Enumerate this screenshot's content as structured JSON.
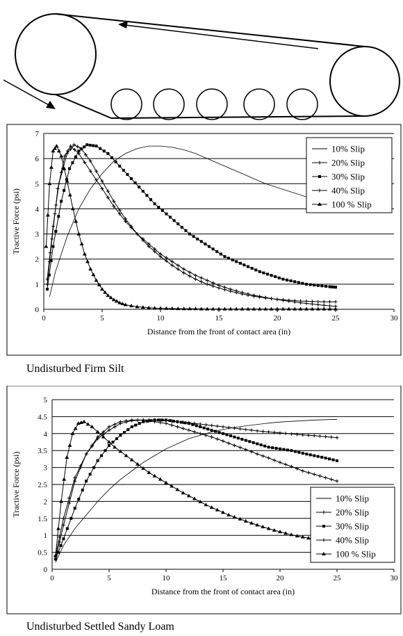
{
  "charts": [
    {
      "id": "chart1",
      "caption": "Undisturbed Firm Silt",
      "chart_data": {
        "type": "line",
        "xlabel": "Distance from the front of contact area (in)",
        "ylabel": "Tractive Force (psi)",
        "xlim": [
          0,
          30
        ],
        "ylim": [
          0,
          7
        ],
        "xticks": [
          0,
          5,
          10,
          15,
          20,
          25,
          30
        ],
        "yticks": [
          0,
          1,
          2,
          3,
          4,
          5,
          6,
          7
        ],
        "grid": "horizontal",
        "legend_position": "top-right",
        "series": [
          {
            "name": "10% Slip",
            "marker": "none",
            "x": [
              0.5,
              1,
              2,
              3,
              4,
              5,
              6,
              7,
              8,
              9,
              10,
              11,
              12,
              13,
              14,
              15,
              16,
              17,
              18,
              19,
              20,
              21,
              22,
              23,
              24,
              25
            ],
            "y": [
              0.5,
              1.5,
              2.9,
              4.0,
              4.8,
              5.4,
              5.9,
              6.2,
              6.4,
              6.5,
              6.5,
              6.45,
              6.35,
              6.2,
              6.0,
              5.8,
              5.6,
              5.4,
              5.2,
              5.0,
              4.85,
              4.7,
              4.55,
              4.4,
              4.25,
              4.1
            ]
          },
          {
            "name": "20% Slip",
            "marker": "plus",
            "x": [
              0.3,
              0.7,
              1.2,
              1.8,
              2.3,
              3,
              4,
              5,
              6,
              7,
              8,
              9,
              10,
              11,
              12,
              13,
              14,
              15,
              16,
              17,
              18,
              19,
              20,
              21,
              22,
              23,
              24,
              25
            ],
            "y": [
              1.0,
              2.8,
              4.8,
              6.1,
              6.5,
              6.2,
              5.5,
              4.8,
              4.1,
              3.5,
              3.0,
              2.6,
              2.2,
              1.9,
              1.6,
              1.35,
              1.15,
              0.95,
              0.8,
              0.67,
              0.56,
              0.47,
              0.39,
              0.32,
              0.26,
              0.21,
              0.16,
              0.12
            ]
          },
          {
            "name": "30% Slip",
            "marker": "square",
            "x": [
              0.3,
              0.8,
              1.5,
              2.2,
              3,
              3.7,
              4.5,
              5.5,
              6.5,
              7.5,
              8.5,
              9.5,
              10.5,
              11.5,
              12.5,
              13.5,
              14.5,
              15.5,
              16.5,
              17.5,
              18.5,
              19.5,
              20.5,
              21.5,
              22.5,
              23.5,
              24.5,
              25
            ],
            "y": [
              0.8,
              2.5,
              4.3,
              5.6,
              6.3,
              6.55,
              6.5,
              6.2,
              5.7,
              5.2,
              4.7,
              4.2,
              3.8,
              3.4,
              3.0,
              2.7,
              2.4,
              2.1,
              1.9,
              1.7,
              1.5,
              1.35,
              1.2,
              1.1,
              1.0,
              0.95,
              0.9,
              0.88
            ]
          },
          {
            "name": "40% Slip",
            "marker": "plus",
            "x": [
              0.3,
              0.8,
              1.3,
              2,
              2.6,
              3.2,
              4,
              5,
              6,
              7,
              8,
              9,
              10,
              11,
              12,
              13,
              14,
              15,
              16,
              17,
              18,
              19,
              20,
              21,
              22,
              23,
              24,
              25
            ],
            "y": [
              1.2,
              3.3,
              5.0,
              6.2,
              6.55,
              6.4,
              5.9,
              5.1,
              4.3,
              3.6,
              3.0,
              2.5,
              2.1,
              1.75,
              1.45,
              1.2,
              1.0,
              0.85,
              0.72,
              0.61,
              0.52,
              0.45,
              0.4,
              0.36,
              0.33,
              0.31,
              0.3,
              0.3
            ]
          },
          {
            "name": "100 % Slip",
            "marker": "triangle",
            "x": [
              0.2,
              0.5,
              0.8,
              1.1,
              1.5,
              2,
              2.5,
              3,
              3.5,
              4,
              4.5,
              5,
              5.5,
              6,
              6.5,
              7,
              8,
              9,
              10,
              11,
              12,
              13,
              14,
              15,
              16,
              17,
              18,
              19,
              20,
              21,
              22,
              23,
              24,
              25
            ],
            "y": [
              2.5,
              5.0,
              6.3,
              6.5,
              6.1,
              5.1,
              4.0,
              3.0,
              2.2,
              1.6,
              1.15,
              0.8,
              0.55,
              0.38,
              0.26,
              0.18,
              0.1,
              0.06,
              0.04,
              0.03,
              0.02,
              0.02,
              0.01,
              0.01,
              0.01,
              0.01,
              0.01,
              0.01,
              0.01,
              0.01,
              0.01,
              0.01,
              0.01,
              0.01
            ]
          }
        ]
      }
    },
    {
      "id": "chart2",
      "caption": "Undisturbed Settled Sandy Loam",
      "chart_data": {
        "type": "line",
        "xlabel": "Distance from the front of contact area (in)",
        "ylabel": "Tractive Force (psi)",
        "xlim": [
          0,
          30
        ],
        "ylim": [
          0,
          5
        ],
        "xticks": [
          0,
          5,
          10,
          15,
          20,
          25,
          30
        ],
        "yticks": [
          0,
          0.5,
          1,
          1.5,
          2,
          2.5,
          3,
          3.5,
          4,
          4.5,
          5
        ],
        "grid": "horizontal",
        "legend_position": "bottom-right",
        "series": [
          {
            "name": "10% Slip",
            "marker": "none",
            "x": [
              0.3,
              1,
              2,
              3,
              4,
              5,
              6,
              7,
              8,
              9,
              10,
              11,
              12,
              13,
              14,
              15,
              16,
              17,
              18,
              19,
              20,
              21,
              22,
              23,
              24,
              25
            ],
            "y": [
              0.2,
              0.7,
              1.2,
              1.6,
              2.0,
              2.35,
              2.65,
              2.9,
              3.15,
              3.35,
              3.55,
              3.7,
              3.85,
              3.95,
              4.05,
              4.12,
              4.18,
              4.23,
              4.27,
              4.31,
              4.34,
              4.36,
              4.38,
              4.4,
              4.41,
              4.42
            ]
          },
          {
            "name": "20% Slip",
            "marker": "plus",
            "x": [
              0.3,
              1,
              2,
              3,
              4,
              5,
              6,
              7,
              8,
              9,
              10,
              11,
              12,
              13,
              14,
              15,
              16,
              17,
              18,
              19,
              20,
              21,
              22,
              23,
              24,
              25
            ],
            "y": [
              0.3,
              1.3,
              2.6,
              3.4,
              3.9,
              4.2,
              4.35,
              4.4,
              4.4,
              4.35,
              4.3,
              4.2,
              4.1,
              4.0,
              3.9,
              3.78,
              3.65,
              3.53,
              3.4,
              3.28,
              3.15,
              3.03,
              2.9,
              2.8,
              2.7,
              2.6
            ]
          },
          {
            "name": "30% Slip",
            "marker": "square",
            "x": [
              0.3,
              1,
              2,
              3,
              4,
              5,
              6,
              7,
              8,
              9,
              10,
              11,
              12,
              13,
              14,
              15,
              16,
              17,
              18,
              19,
              20,
              21,
              22,
              23,
              24,
              25
            ],
            "y": [
              0.3,
              0.9,
              1.8,
              2.6,
              3.2,
              3.65,
              3.95,
              4.2,
              4.35,
              4.4,
              4.4,
              4.35,
              4.3,
              4.2,
              4.1,
              4.0,
              3.9,
              3.8,
              3.7,
              3.6,
              3.55,
              3.5,
              3.42,
              3.35,
              3.28,
              3.2
            ]
          },
          {
            "name": "40% Slip",
            "marker": "plus",
            "x": [
              0.3,
              1,
              2,
              3,
              4,
              5,
              6,
              7,
              8,
              9,
              10,
              11,
              12,
              13,
              14,
              15,
              16,
              17,
              18,
              19,
              20,
              21,
              22,
              23,
              24,
              25
            ],
            "y": [
              0.4,
              1.5,
              2.7,
              3.4,
              3.85,
              4.1,
              4.3,
              4.38,
              4.4,
              4.4,
              4.38,
              4.35,
              4.32,
              4.28,
              4.24,
              4.2,
              4.16,
              4.12,
              4.08,
              4.05,
              4.02,
              3.99,
              3.96,
              3.94,
              3.91,
              3.88
            ]
          },
          {
            "name": "100 % Slip",
            "marker": "triangle",
            "x": [
              0.3,
              0.8,
              1.3,
              1.8,
              2.3,
              2.8,
              3.5,
              4.5,
              5.5,
              6.5,
              7.5,
              8.5,
              9.5,
              10.5,
              11.5,
              12.5,
              13.5,
              14.5,
              15.5,
              16.5,
              17.5,
              18.5,
              19.5,
              20.5,
              21.5,
              22.5,
              23.5,
              24.5,
              25
            ],
            "y": [
              0.4,
              2.0,
              3.3,
              4.0,
              4.3,
              4.35,
              4.2,
              3.9,
              3.6,
              3.35,
              3.1,
              2.85,
              2.65,
              2.45,
              2.25,
              2.08,
              1.9,
              1.75,
              1.6,
              1.48,
              1.36,
              1.25,
              1.15,
              1.06,
              0.98,
              0.92,
              0.87,
              0.83,
              0.8
            ]
          }
        ]
      }
    }
  ]
}
